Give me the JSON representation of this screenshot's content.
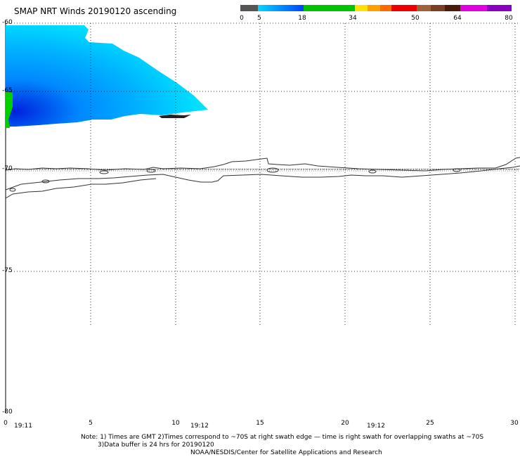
{
  "title": "SMAP NRT Winds 20190120 ascending",
  "colorbar": {
    "ticks": [
      "0",
      "5",
      "18",
      "34",
      "50",
      "64",
      "80"
    ],
    "colors": {
      "gray": "#555555",
      "cyan": "#00d8ff",
      "blue": "#0033ee",
      "green": "#00c400",
      "yellow": "#ffe000",
      "orange": "#ff8000",
      "red": "#ee0000",
      "brown": "#8b4a2a",
      "magenta": "#e000e0",
      "purple": "#8a00c0"
    }
  },
  "map": {
    "lat_labels": [
      "-60",
      "-65",
      "-70",
      "-75",
      "-80"
    ],
    "lon_labels": [
      "0",
      "5",
      "10",
      "15",
      "20",
      "25",
      "30"
    ],
    "times": [
      "19:11",
      "19:12",
      "19:12"
    ]
  },
  "notes": {
    "line1": "Note: 1) Times are GMT 2)Times correspond to ~70S at right swath edge — time is right swath for overlapping swaths at ~70S",
    "line2": "3)Data buffer is 24 hrs for 20190120",
    "line3": "NOAA/NESDIS/Center for Satellite Applications and Research"
  }
}
